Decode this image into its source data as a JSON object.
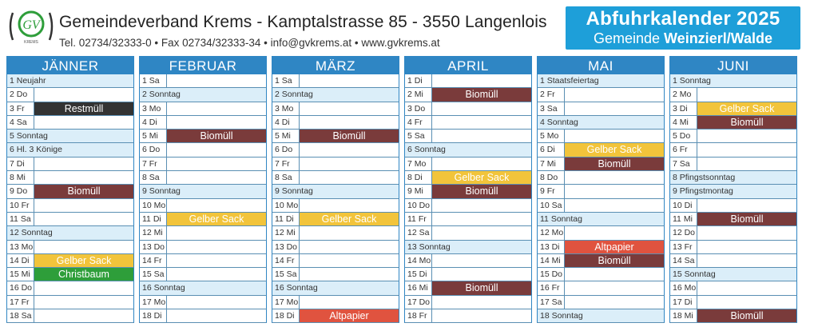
{
  "header": {
    "logo_text": "GV",
    "logo_subtext": "KREMS",
    "org_line": "Gemeindeverband Krems - Kamptalstrasse 85 - 3550 Langenlois",
    "contact_line": "Tel. 02734/32333-0 • Fax 02734/32333-34 • info@gvkrems.at • www.gvkrems.at",
    "title": "Abfuhrkalender 2025",
    "subtitle_prefix": "Gemeinde ",
    "subtitle_bold": "Weinzierl/Walde"
  },
  "colors": {
    "header_blue": "#1e9fd9",
    "month_blue": "#2f86c4",
    "biomuell": "#7a3b3b",
    "restmuell": "#333333",
    "gelber_sack": "#f2c43b",
    "altpapier": "#e0533f",
    "christbaum": "#2e9e3a"
  },
  "months": [
    {
      "name": "JÄNNER",
      "days": [
        {
          "d": "1 Neujahr",
          "e": "",
          "sun": true,
          "wide": true
        },
        {
          "d": "2 Do",
          "e": ""
        },
        {
          "d": "3 Fr",
          "e": "Restmüll",
          "c": "Restmüll"
        },
        {
          "d": "4 Sa",
          "e": ""
        },
        {
          "d": "5 Sonntag",
          "e": "",
          "sun": true,
          "wide": true
        },
        {
          "d": "6 Hl. 3 Könige",
          "e": "",
          "sun": true,
          "wide": true
        },
        {
          "d": "7 Di",
          "e": ""
        },
        {
          "d": "8 Mi",
          "e": ""
        },
        {
          "d": "9 Do",
          "e": "Biomüll",
          "c": "Biomüll"
        },
        {
          "d": "10 Fr",
          "e": ""
        },
        {
          "d": "11 Sa",
          "e": ""
        },
        {
          "d": "12 Sonntag",
          "e": "",
          "sun": true,
          "wide": true
        },
        {
          "d": "13 Mo",
          "e": ""
        },
        {
          "d": "14 Di",
          "e": "Gelber Sack",
          "c": "Gelber"
        },
        {
          "d": "15 Mi",
          "e": "Christbaum",
          "c": "Christ"
        },
        {
          "d": "16 Do",
          "e": ""
        },
        {
          "d": "17 Fr",
          "e": ""
        },
        {
          "d": "18 Sa",
          "e": ""
        }
      ]
    },
    {
      "name": "FEBRUAR",
      "days": [
        {
          "d": "1 Sa",
          "e": ""
        },
        {
          "d": "2 Sonntag",
          "e": "",
          "sun": true,
          "wide": true
        },
        {
          "d": "3 Mo",
          "e": ""
        },
        {
          "d": "4 Di",
          "e": ""
        },
        {
          "d": "5 Mi",
          "e": "Biomüll",
          "c": "Biomüll"
        },
        {
          "d": "6 Do",
          "e": ""
        },
        {
          "d": "7 Fr",
          "e": ""
        },
        {
          "d": "8 Sa",
          "e": ""
        },
        {
          "d": "9 Sonntag",
          "e": "",
          "sun": true,
          "wide": true
        },
        {
          "d": "10 Mo",
          "e": ""
        },
        {
          "d": "11 Di",
          "e": "Gelber Sack",
          "c": "Gelber"
        },
        {
          "d": "12 Mi",
          "e": ""
        },
        {
          "d": "13 Do",
          "e": ""
        },
        {
          "d": "14 Fr",
          "e": ""
        },
        {
          "d": "15 Sa",
          "e": ""
        },
        {
          "d": "16 Sonntag",
          "e": "",
          "sun": true,
          "wide": true
        },
        {
          "d": "17 Mo",
          "e": ""
        },
        {
          "d": "18 Di",
          "e": ""
        }
      ]
    },
    {
      "name": "MÄRZ",
      "days": [
        {
          "d": "1 Sa",
          "e": ""
        },
        {
          "d": "2 Sonntag",
          "e": "",
          "sun": true,
          "wide": true
        },
        {
          "d": "3 Mo",
          "e": ""
        },
        {
          "d": "4 Di",
          "e": ""
        },
        {
          "d": "5 Mi",
          "e": "Biomüll",
          "c": "Biomüll"
        },
        {
          "d": "6 Do",
          "e": ""
        },
        {
          "d": "7 Fr",
          "e": ""
        },
        {
          "d": "8 Sa",
          "e": ""
        },
        {
          "d": "9 Sonntag",
          "e": "",
          "sun": true,
          "wide": true
        },
        {
          "d": "10 Mo",
          "e": ""
        },
        {
          "d": "11 Di",
          "e": "Gelber Sack",
          "c": "Gelber"
        },
        {
          "d": "12 Mi",
          "e": ""
        },
        {
          "d": "13 Do",
          "e": ""
        },
        {
          "d": "14 Fr",
          "e": ""
        },
        {
          "d": "15 Sa",
          "e": ""
        },
        {
          "d": "16 Sonntag",
          "e": "",
          "sun": true,
          "wide": true
        },
        {
          "d": "17 Mo",
          "e": ""
        },
        {
          "d": "18 Di",
          "e": "Altpapier",
          "c": "Alt"
        }
      ]
    },
    {
      "name": "APRIL",
      "days": [
        {
          "d": "1 Di",
          "e": ""
        },
        {
          "d": "2 Mi",
          "e": "Biomüll",
          "c": "Biomüll"
        },
        {
          "d": "3 Do",
          "e": ""
        },
        {
          "d": "4 Fr",
          "e": ""
        },
        {
          "d": "5 Sa",
          "e": ""
        },
        {
          "d": "6 Sonntag",
          "e": "",
          "sun": true,
          "wide": true
        },
        {
          "d": "7 Mo",
          "e": ""
        },
        {
          "d": "8 Di",
          "e": "Gelber Sack",
          "c": "Gelber"
        },
        {
          "d": "9 Mi",
          "e": "Biomüll",
          "c": "Biomüll"
        },
        {
          "d": "10 Do",
          "e": ""
        },
        {
          "d": "11 Fr",
          "e": ""
        },
        {
          "d": "12 Sa",
          "e": ""
        },
        {
          "d": "13 Sonntag",
          "e": "",
          "sun": true,
          "wide": true
        },
        {
          "d": "14 Mo",
          "e": ""
        },
        {
          "d": "15 Di",
          "e": ""
        },
        {
          "d": "16 Mi",
          "e": "Biomüll",
          "c": "Biomüll"
        },
        {
          "d": "17 Do",
          "e": ""
        },
        {
          "d": "18 Fr",
          "e": ""
        }
      ]
    },
    {
      "name": "MAI",
      "days": [
        {
          "d": "1 Staatsfeiertag",
          "e": "",
          "sun": true,
          "wide": true
        },
        {
          "d": "2 Fr",
          "e": ""
        },
        {
          "d": "3 Sa",
          "e": ""
        },
        {
          "d": "4 Sonntag",
          "e": "",
          "sun": true,
          "wide": true
        },
        {
          "d": "5 Mo",
          "e": ""
        },
        {
          "d": "6 Di",
          "e": "Gelber Sack",
          "c": "Gelber"
        },
        {
          "d": "7 Mi",
          "e": "Biomüll",
          "c": "Biomüll"
        },
        {
          "d": "8 Do",
          "e": ""
        },
        {
          "d": "9 Fr",
          "e": ""
        },
        {
          "d": "10 Sa",
          "e": ""
        },
        {
          "d": "11 Sonntag",
          "e": "",
          "sun": true,
          "wide": true
        },
        {
          "d": "12 Mo",
          "e": ""
        },
        {
          "d": "13 Di",
          "e": "Altpapier",
          "c": "Alt"
        },
        {
          "d": "14 Mi",
          "e": "Biomüll",
          "c": "Biomüll"
        },
        {
          "d": "15 Do",
          "e": ""
        },
        {
          "d": "16 Fr",
          "e": ""
        },
        {
          "d": "17 Sa",
          "e": ""
        },
        {
          "d": "18 Sonntag",
          "e": "",
          "sun": true,
          "wide": true
        }
      ]
    },
    {
      "name": "JUNI",
      "days": [
        {
          "d": "1 Sonntag",
          "e": "",
          "sun": true,
          "wide": true
        },
        {
          "d": "2 Mo",
          "e": ""
        },
        {
          "d": "3 Di",
          "e": "Gelber Sack",
          "c": "Gelber"
        },
        {
          "d": "4 Mi",
          "e": "Biomüll",
          "c": "Biomüll"
        },
        {
          "d": "5 Do",
          "e": ""
        },
        {
          "d": "6 Fr",
          "e": ""
        },
        {
          "d": "7 Sa",
          "e": ""
        },
        {
          "d": "8 Pfingstsonntag",
          "e": "",
          "sun": true,
          "wide": true
        },
        {
          "d": "9 Pfingstmontag",
          "e": "",
          "sun": true,
          "wide": true
        },
        {
          "d": "10 Di",
          "e": ""
        },
        {
          "d": "11 Mi",
          "e": "Biomüll",
          "c": "Biomüll"
        },
        {
          "d": "12 Do",
          "e": ""
        },
        {
          "d": "13 Fr",
          "e": ""
        },
        {
          "d": "14 Sa",
          "e": ""
        },
        {
          "d": "15 Sonntag",
          "e": "",
          "sun": true,
          "wide": true
        },
        {
          "d": "16 Mo",
          "e": ""
        },
        {
          "d": "17 Di",
          "e": ""
        },
        {
          "d": "18 Mi",
          "e": "Biomüll",
          "c": "Biomüll"
        }
      ]
    }
  ]
}
